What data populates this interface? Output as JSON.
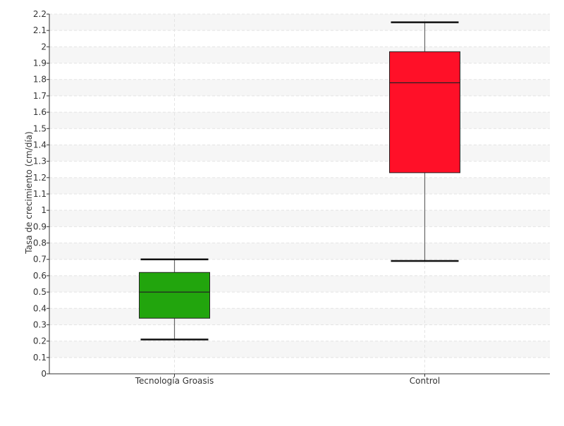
{
  "chart_data": {
    "type": "boxplot",
    "ylabel": "Tasa de crecimiento (cm/día)",
    "xlabel": "",
    "ylim": [
      0,
      2.2
    ],
    "yticks": [
      0,
      0.1,
      0.2,
      0.3,
      0.4,
      0.5,
      0.6,
      0.7,
      0.8,
      0.9,
      1,
      1.1,
      1.2,
      1.3,
      1.4,
      1.5,
      1.6,
      1.7,
      1.8,
      1.9,
      2,
      2.1,
      2.2
    ],
    "ytick_labels": [
      "0",
      "0.1",
      "0.2",
      "0.3",
      "0.4",
      "0.5",
      "0.6",
      "0.7",
      "0.8",
      "0.9",
      "1",
      "1.1",
      "1.2",
      "1.3",
      "1.4",
      "1.5",
      "1.6",
      "1.7",
      "1.8",
      "1.9",
      "2",
      "2.1",
      "2.2"
    ],
    "grid": true,
    "categories": [
      "Tecnología Groasis",
      "Control"
    ],
    "boxes": [
      {
        "category": "Tecnología Groasis",
        "min": 0.21,
        "q1": 0.34,
        "median": 0.5,
        "q3": 0.62,
        "max": 0.7,
        "color": "#22a50d"
      },
      {
        "category": "Control",
        "min": 0.69,
        "q1": 1.23,
        "median": 1.78,
        "q3": 1.97,
        "max": 2.15,
        "color": "#ff1028"
      }
    ]
  }
}
